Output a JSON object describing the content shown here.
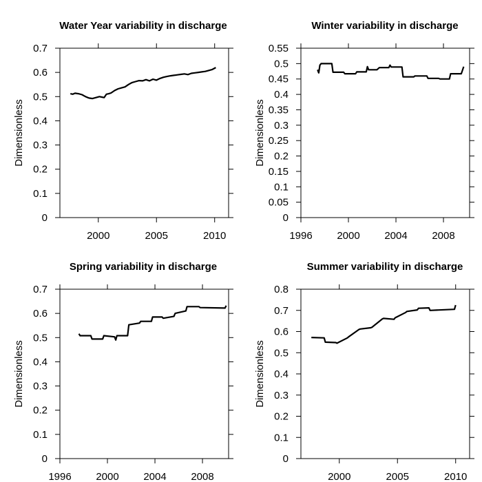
{
  "chart_data": [
    {
      "type": "line",
      "title": "Water Year variability in discharge",
      "xlabel": "",
      "ylabel": "Dimensionless",
      "xlim": [
        1996.7,
        2011.2
      ],
      "ylim": [
        0,
        0.7
      ],
      "xticks": [
        2000,
        2005,
        2010
      ],
      "yticks": [
        0,
        0.1,
        0.2,
        0.3,
        0.4,
        0.5,
        0.6,
        0.7
      ],
      "grid": false,
      "series": [
        {
          "x": [
            1997.6,
            1997.8,
            1998.0,
            1998.3,
            1998.6,
            1998.9,
            1999.2,
            1999.5,
            1999.8,
            2000.1,
            2000.3,
            2000.5,
            2000.7,
            2000.9,
            2001.1,
            2001.4,
            2001.7,
            2002.0,
            2002.3,
            2002.6,
            2002.9,
            2003.2,
            2003.5,
            2003.8,
            2004.1,
            2004.4,
            2004.7,
            2005.0,
            2005.3,
            2005.6,
            2005.9,
            2006.2,
            2006.5,
            2006.8,
            2007.1,
            2007.4,
            2007.7,
            2008.0,
            2008.3,
            2008.6,
            2008.9,
            2009.2,
            2009.5,
            2009.8,
            2010.1
          ],
          "y": [
            0.512,
            0.51,
            0.514,
            0.512,
            0.508,
            0.5,
            0.494,
            0.492,
            0.496,
            0.5,
            0.498,
            0.496,
            0.51,
            0.512,
            0.515,
            0.525,
            0.532,
            0.536,
            0.54,
            0.55,
            0.558,
            0.562,
            0.566,
            0.565,
            0.57,
            0.565,
            0.572,
            0.568,
            0.575,
            0.58,
            0.583,
            0.586,
            0.588,
            0.59,
            0.592,
            0.594,
            0.591,
            0.596,
            0.598,
            0.6,
            0.602,
            0.604,
            0.608,
            0.612,
            0.62
          ]
        }
      ]
    },
    {
      "type": "line",
      "title": "Winter variability in discharge",
      "xlabel": "",
      "ylabel": "Dimensionless",
      "xlim": [
        1996,
        2010.2
      ],
      "ylim": [
        0,
        0.55
      ],
      "xticks": [
        1996,
        2000,
        2004,
        2008
      ],
      "yticks": [
        0,
        0.05,
        0.1,
        0.15,
        0.2,
        0.25,
        0.3,
        0.35,
        0.4,
        0.45,
        0.5,
        0.55
      ],
      "grid": false,
      "series": [
        {
          "x": [
            1997.4,
            1997.5,
            1997.6,
            1997.7,
            1998.6,
            1998.7,
            1999.6,
            1999.7,
            2000.6,
            2000.7,
            2001.5,
            2001.6,
            2001.7,
            2002.4,
            2002.6,
            2003.4,
            2003.5,
            2003.6,
            2004.5,
            2004.6,
            2005.5,
            2005.6,
            2006.6,
            2006.7,
            2007.6,
            2007.7,
            2008.5,
            2008.6,
            2009.5,
            2009.6,
            2009.7
          ],
          "y": [
            0.48,
            0.47,
            0.495,
            0.5,
            0.5,
            0.472,
            0.472,
            0.467,
            0.467,
            0.473,
            0.473,
            0.49,
            0.48,
            0.48,
            0.487,
            0.487,
            0.495,
            0.489,
            0.489,
            0.457,
            0.457,
            0.46,
            0.46,
            0.452,
            0.452,
            0.45,
            0.45,
            0.467,
            0.467,
            0.478,
            0.49
          ]
        }
      ]
    },
    {
      "type": "line",
      "title": "Spring variability in discharge",
      "xlabel": "",
      "ylabel": "Dimensionless",
      "xlim": [
        1996,
        2010.2
      ],
      "ylim": [
        0,
        0.7
      ],
      "xticks": [
        1996,
        2000,
        2004,
        2008
      ],
      "yticks": [
        0,
        0.1,
        0.2,
        0.3,
        0.4,
        0.5,
        0.6,
        0.7
      ],
      "grid": false,
      "series": [
        {
          "x": [
            1997.6,
            1997.7,
            1998.6,
            1998.7,
            1999.6,
            1999.7,
            2000.6,
            2000.7,
            2000.8,
            2001.7,
            2001.8,
            2002.7,
            2002.8,
            2003.7,
            2003.8,
            2004.6,
            2004.7,
            2005.6,
            2005.7,
            2006.6,
            2006.7,
            2007.7,
            2007.8,
            2009.9,
            2010.0
          ],
          "y": [
            0.516,
            0.508,
            0.508,
            0.494,
            0.494,
            0.508,
            0.503,
            0.49,
            0.508,
            0.508,
            0.553,
            0.56,
            0.567,
            0.567,
            0.585,
            0.585,
            0.58,
            0.588,
            0.6,
            0.61,
            0.628,
            0.628,
            0.624,
            0.622,
            0.632
          ]
        }
      ]
    },
    {
      "type": "line",
      "title": "Summer variability in discharge",
      "xlabel": "",
      "ylabel": "Dimensionless",
      "xlim": [
        1996.7,
        2011.2
      ],
      "ylim": [
        0,
        0.8
      ],
      "xticks": [
        2000,
        2005,
        2010
      ],
      "yticks": [
        0,
        0.1,
        0.2,
        0.3,
        0.4,
        0.5,
        0.6,
        0.7,
        0.8
      ],
      "grid": false,
      "series": [
        {
          "x": [
            1997.6,
            1998.7,
            1998.8,
            1999.7,
            1999.8,
            2000.7,
            2000.8,
            2001.7,
            2001.8,
            2002.7,
            2002.8,
            2003.7,
            2003.8,
            2004.7,
            2004.8,
            2005.7,
            2005.8,
            2006.7,
            2006.8,
            2007.7,
            2007.8,
            2009.9,
            2010.0
          ],
          "y": [
            0.572,
            0.57,
            0.55,
            0.548,
            0.545,
            0.57,
            0.575,
            0.61,
            0.612,
            0.618,
            0.62,
            0.66,
            0.662,
            0.658,
            0.665,
            0.69,
            0.695,
            0.702,
            0.71,
            0.712,
            0.7,
            0.705,
            0.725
          ]
        }
      ]
    }
  ]
}
